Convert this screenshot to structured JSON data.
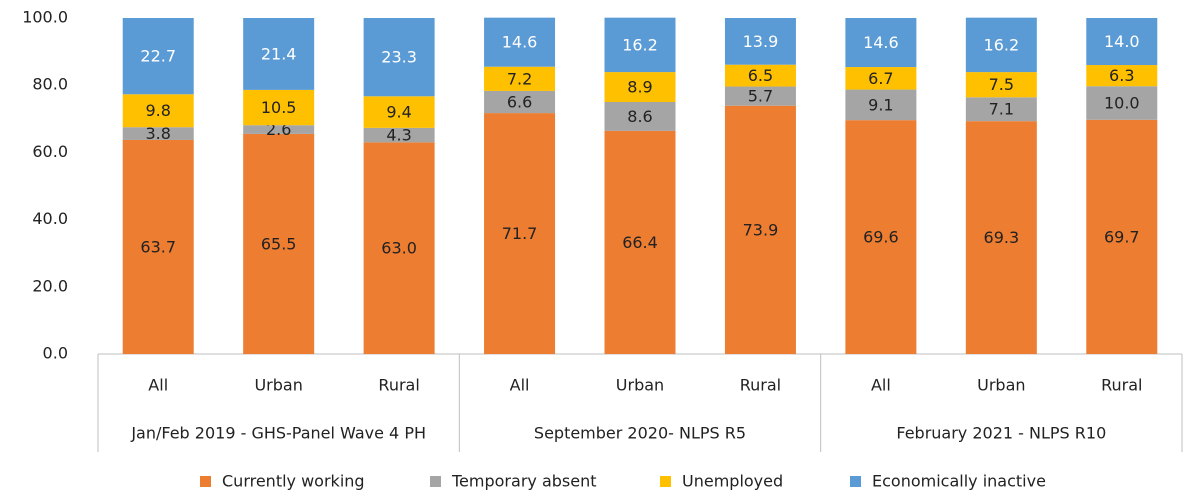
{
  "chart_data": {
    "type": "stacked_bar",
    "groups": [
      {
        "name": "Jan/Feb 2019 - GHS-Panel Wave 4 PH",
        "categories": [
          "All",
          "Urban",
          "Rural"
        ]
      },
      {
        "name": "September 2020- NLPS R5",
        "categories": [
          "All",
          "Urban",
          "Rural"
        ]
      },
      {
        "name": "February 2021 - NLPS R10",
        "categories": [
          "All",
          "Urban",
          "Rural"
        ]
      }
    ],
    "series": [
      {
        "name": "Currently working",
        "color": "#ed7d31",
        "values": [
          63.7,
          65.5,
          63,
          71.7,
          66.4,
          73.9,
          69.6,
          69.3,
          69.7
        ],
        "value_labels": [
          "63.7",
          "65.5",
          "63.0",
          "71.7",
          "66.4",
          "73.9",
          "69.6",
          "69.3",
          "69.7"
        ]
      },
      {
        "name": "Temporary absent",
        "color": "#a5a5a5",
        "values": [
          3.8,
          2.6,
          4.3,
          6.6,
          8.6,
          5.7,
          9.1,
          7.1,
          10
        ],
        "value_labels": [
          "3.8",
          "2.6",
          "4.3",
          "6.6",
          "8.6",
          "5.7",
          "9.1",
          "7.1",
          "10.0"
        ]
      },
      {
        "name": "Unemployed",
        "color": "#ffc000",
        "values": [
          9.8,
          10.5,
          9.4,
          7.2,
          8.9,
          6.5,
          6.7,
          7.5,
          6.3
        ],
        "value_labels": [
          "9.8",
          "10.5",
          "9.4",
          "7.2",
          "8.9",
          "6.5",
          "6.7",
          "7.5",
          "6.3"
        ]
      },
      {
        "name": "Economically inactive",
        "color": "#5b9bd5",
        "values": [
          22.7,
          21.4,
          23.3,
          14.6,
          16.2,
          13.9,
          14.6,
          16.2,
          14
        ],
        "value_labels": [
          "22.7",
          "21.4",
          "23.3",
          "14.6",
          "16.2",
          "13.9",
          "14.6",
          "16.2",
          "14.0"
        ]
      }
    ],
    "ylim": [
      0,
      100
    ],
    "yticks": [
      {
        "value": 0,
        "label": "0.0"
      },
      {
        "value": 20,
        "label": "20.0"
      },
      {
        "value": 40,
        "label": "40.0"
      },
      {
        "value": 60,
        "label": "60.0"
      },
      {
        "value": 80,
        "label": "80.0"
      },
      {
        "value": 100,
        "label": "100.0"
      }
    ],
    "legend": "bottom"
  }
}
